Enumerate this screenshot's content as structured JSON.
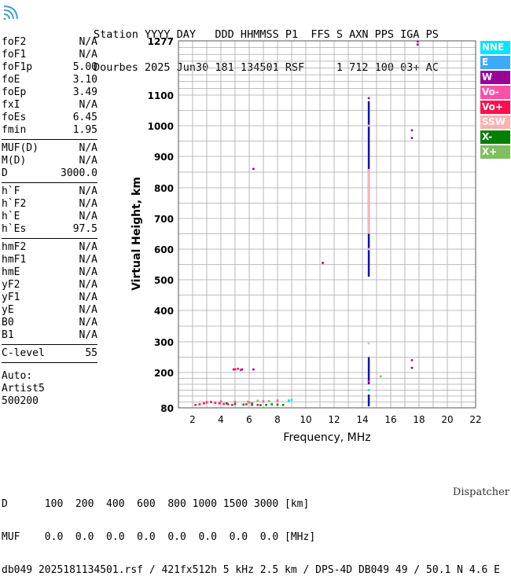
{
  "header": {
    "line1": "Station YYYY DAY   DDD HHMMSS P1  FFS S AXN PPS IGA PS",
    "line2": "Dourbes 2025 Jun30 181 134501 RSF     1 712 100 03+ AC"
  },
  "params": {
    "group1": [
      {
        "name": "foF2",
        "value": "N/A"
      },
      {
        "name": "foF1",
        "value": "N/A"
      },
      {
        "name": "foF1p",
        "value": "5.00"
      },
      {
        "name": "foE",
        "value": "3.10"
      },
      {
        "name": "foEp",
        "value": "3.49"
      },
      {
        "name": "fxI",
        "value": "N/A"
      },
      {
        "name": "foEs",
        "value": "6.45"
      },
      {
        "name": "fmin",
        "value": "1.95"
      }
    ],
    "group2": [
      {
        "name": "MUF(D)",
        "value": "N/A"
      },
      {
        "name": "M(D)",
        "value": "N/A"
      },
      {
        "name": "D",
        "value": "3000.0"
      }
    ],
    "group3": [
      {
        "name": "h`F",
        "value": "N/A"
      },
      {
        "name": "h`F2",
        "value": "N/A"
      },
      {
        "name": "h`E",
        "value": "N/A"
      },
      {
        "name": "h`Es",
        "value": "97.5"
      }
    ],
    "group4": [
      {
        "name": "hmF2",
        "value": "N/A"
      },
      {
        "name": "hmF1",
        "value": "N/A"
      },
      {
        "name": "hmE",
        "value": "N/A"
      },
      {
        "name": "yF2",
        "value": "N/A"
      },
      {
        "name": "yF1",
        "value": "N/A"
      },
      {
        "name": "yE",
        "value": "N/A"
      },
      {
        "name": "B0",
        "value": "N/A"
      },
      {
        "name": "B1",
        "value": "N/A"
      }
    ],
    "group5": [
      {
        "name": "C-level",
        "value": "55"
      }
    ]
  },
  "auto": {
    "line1": "Auto:",
    "line2": "Artist5",
    "line3": "500200"
  },
  "legend": [
    {
      "label": "NNE",
      "color": "#00e5ff"
    },
    {
      "label": "E",
      "color": "#3fa9f5"
    },
    {
      "label": "W",
      "color": "#9b009b"
    },
    {
      "label": "Vo-",
      "color": "#ff4fa8"
    },
    {
      "label": "Vo+",
      "color": "#ff1050"
    },
    {
      "label": "SSW",
      "color": "#ffb0b0"
    },
    {
      "label": "X-",
      "color": "#008000"
    },
    {
      "label": "X+",
      "color": "#7fbf5f"
    }
  ],
  "footer": {
    "line1": "D      100  200  400  600  800 1000 1500 3000 [km]",
    "line2": "MUF    0.0  0.0  0.0  0.0  0.0  0.0  0.0  0.0 [MHz]",
    "line3": "db049 2025181134501.rsf / 421fx512h 5 kHz 2.5 km / DPS-4D DB049 49 / 50.1 N 4.6 E",
    "dispatcher": "Dispatcher"
  },
  "chart_data": {
    "type": "scatter",
    "xlabel": "Frequency, MHz",
    "ylabel": "Virtual Height, km",
    "xlim": [
      1,
      22
    ],
    "x_ticks": [
      2,
      4,
      6,
      8,
      10,
      12,
      14,
      16,
      18,
      20,
      22
    ],
    "y_ticks": [
      80,
      200,
      300,
      400,
      500,
      600,
      700,
      800,
      900,
      1000,
      1100,
      1277
    ],
    "y_scale": "piecewise",
    "grid": true,
    "series": [
      {
        "name": "W",
        "points": [
          [
            14.45,
            1090
          ],
          [
            17.9,
            1265
          ],
          [
            17.9,
            1275
          ],
          [
            6.3,
            860
          ],
          [
            11.2,
            555
          ],
          [
            17.5,
            985
          ],
          [
            17.5,
            960
          ],
          [
            17.5,
            240
          ],
          [
            17.5,
            215
          ],
          [
            4.9,
            210
          ],
          [
            5.5,
            210
          ],
          [
            6.3,
            210
          ]
        ]
      },
      {
        "name": "E",
        "segments": [
          [
            14.45,
            510,
            14.45,
            1080
          ],
          [
            14.45,
            160,
            14.45,
            250
          ],
          [
            14.45,
            85,
            14.45,
            125
          ]
        ]
      },
      {
        "name": "SSW",
        "segments": [
          [
            14.45,
            650,
            14.45,
            860
          ]
        ],
        "points": [
          [
            14.45,
            295
          ],
          [
            14.45,
            600
          ],
          [
            14.45,
            1000
          ]
        ]
      },
      {
        "name": "Vo+",
        "points": [
          [
            2.2,
            90
          ],
          [
            2.5,
            92
          ],
          [
            2.8,
            95
          ],
          [
            3.0,
            98
          ],
          [
            3.3,
            100
          ],
          [
            3.6,
            97
          ],
          [
            3.9,
            95
          ],
          [
            4.2,
            93
          ],
          [
            4.5,
            92
          ],
          [
            4.8,
            90
          ],
          [
            5.0,
            210
          ],
          [
            5.2,
            212
          ],
          [
            5.4,
            208
          ],
          [
            5.8,
            92
          ],
          [
            6.2,
            95
          ],
          [
            6.6,
            90
          ],
          [
            14.45,
            170
          ]
        ]
      },
      {
        "name": "X-",
        "points": [
          [
            4.4,
            95
          ],
          [
            5.0,
            93
          ],
          [
            5.6,
            91
          ],
          [
            6.2,
            90
          ],
          [
            6.8,
            89
          ],
          [
            7.2,
            90
          ],
          [
            7.6,
            92
          ],
          [
            8.0,
            91
          ],
          [
            8.4,
            90
          ]
        ]
      },
      {
        "name": "Vo-",
        "points": [
          [
            3.0,
            100
          ],
          [
            4.0,
            102
          ],
          [
            5.0,
            100
          ],
          [
            6.0,
            98
          ],
          [
            7.0,
            102
          ],
          [
            8.0,
            105
          ],
          [
            8.8,
            105
          ]
        ]
      },
      {
        "name": "NNE",
        "points": [
          [
            9.0,
            107
          ],
          [
            8.8,
            103
          ],
          [
            14.45,
            140
          ]
        ]
      },
      {
        "name": "X+",
        "points": [
          [
            15.3,
            187
          ],
          [
            7.4,
            103
          ],
          [
            6.6,
            104
          ],
          [
            5.9,
            101
          ]
        ]
      }
    ]
  }
}
